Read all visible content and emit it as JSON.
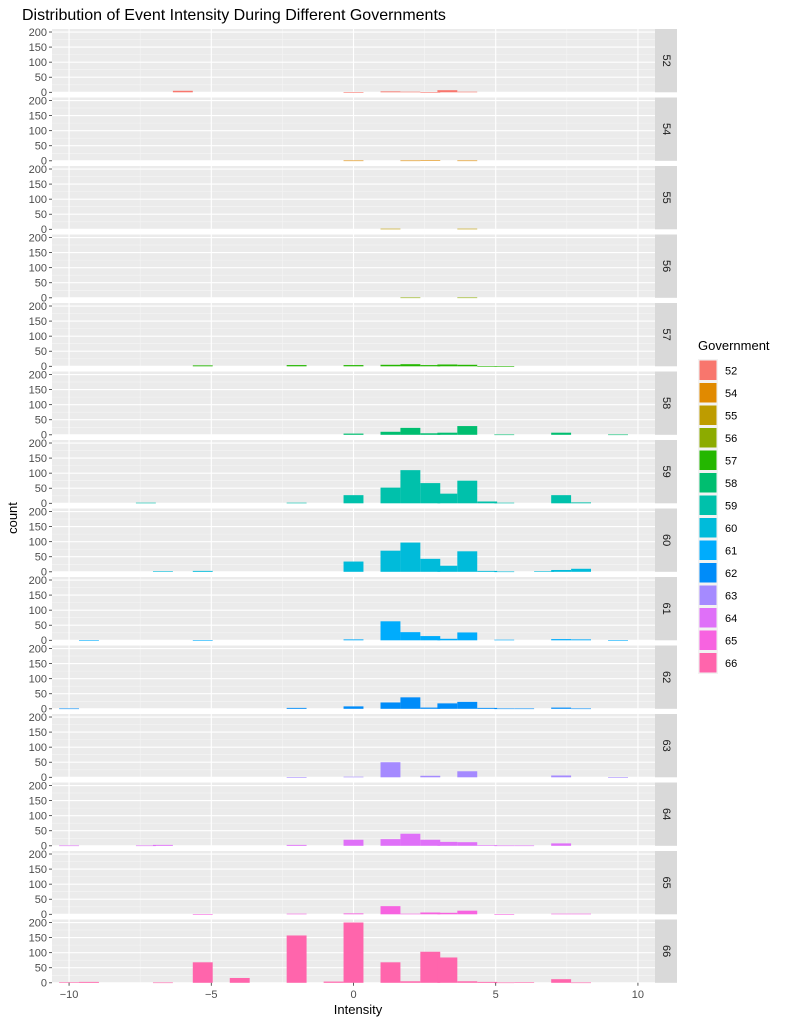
{
  "chart_data": {
    "type": "bar",
    "subtype": "faceted-histogram",
    "title": "Distribution of Event Intensity During Different Governments",
    "xlabel": "Intensity",
    "ylabel": "count",
    "xlim": [
      -10.6,
      10.6
    ],
    "ylim": [
      0,
      210
    ],
    "x_ticks": [
      -10,
      -5,
      0,
      5,
      10
    ],
    "x_tick_labels": [
      "−10",
      "−5",
      "0",
      "5",
      "10"
    ],
    "y_ticks": [
      0,
      50,
      100,
      150,
      200
    ],
    "y_tick_labels": [
      "0",
      "50",
      "100",
      "150",
      "200"
    ],
    "bin_width": 0.7,
    "grid": true,
    "legend": {
      "title": "Government",
      "position": "right",
      "entries": [
        "52",
        "54",
        "55",
        "56",
        "57",
        "58",
        "59",
        "60",
        "61",
        "62",
        "63",
        "64",
        "65",
        "66"
      ]
    },
    "colors": {
      "52": "#F8766D",
      "54": "#E18A00",
      "55": "#BE9C00",
      "56": "#8CAB00",
      "57": "#24B700",
      "58": "#00BE70",
      "59": "#00C1AB",
      "60": "#00BBDA",
      "61": "#00ACFC",
      "62": "#008CF9",
      "63": "#A58AFF",
      "64": "#DF70F8",
      "65": "#F763E0",
      "66": "#FF65AC"
    },
    "series": [
      {
        "name": "52",
        "points": [
          {
            "x": -6.0,
            "y": 5
          },
          {
            "x": 0.0,
            "y": 1
          },
          {
            "x": 1.3,
            "y": 3
          },
          {
            "x": 2.0,
            "y": 2
          },
          {
            "x": 2.7,
            "y": 1
          },
          {
            "x": 3.3,
            "y": 7
          },
          {
            "x": 4.0,
            "y": 2
          }
        ]
      },
      {
        "name": "54",
        "points": [
          {
            "x": 0.0,
            "y": 1
          },
          {
            "x": 2.0,
            "y": 1
          },
          {
            "x": 2.7,
            "y": 2
          },
          {
            "x": 4.0,
            "y": 1
          }
        ]
      },
      {
        "name": "55",
        "points": [
          {
            "x": 1.3,
            "y": 2
          },
          {
            "x": 4.0,
            "y": 2
          }
        ]
      },
      {
        "name": "56",
        "points": [
          {
            "x": 2.0,
            "y": 1
          },
          {
            "x": 4.0,
            "y": 1
          }
        ]
      },
      {
        "name": "57",
        "points": [
          {
            "x": -5.3,
            "y": 3
          },
          {
            "x": -2.0,
            "y": 4
          },
          {
            "x": 0.0,
            "y": 4
          },
          {
            "x": 1.3,
            "y": 5
          },
          {
            "x": 2.0,
            "y": 7
          },
          {
            "x": 2.7,
            "y": 4
          },
          {
            "x": 3.3,
            "y": 6
          },
          {
            "x": 4.0,
            "y": 5
          },
          {
            "x": 4.7,
            "y": 1
          },
          {
            "x": 5.3,
            "y": 1
          }
        ]
      },
      {
        "name": "58",
        "points": [
          {
            "x": 0.0,
            "y": 4
          },
          {
            "x": 1.3,
            "y": 10
          },
          {
            "x": 2.0,
            "y": 23
          },
          {
            "x": 2.7,
            "y": 5
          },
          {
            "x": 3.3,
            "y": 7
          },
          {
            "x": 4.0,
            "y": 29
          },
          {
            "x": 5.3,
            "y": 1
          },
          {
            "x": 7.3,
            "y": 7
          },
          {
            "x": 9.3,
            "y": 1
          }
        ]
      },
      {
        "name": "59",
        "points": [
          {
            "x": -7.3,
            "y": 2
          },
          {
            "x": -2.0,
            "y": 2
          },
          {
            "x": 0.0,
            "y": 27
          },
          {
            "x": 1.3,
            "y": 52
          },
          {
            "x": 2.0,
            "y": 110
          },
          {
            "x": 2.7,
            "y": 67
          },
          {
            "x": 3.3,
            "y": 32
          },
          {
            "x": 4.0,
            "y": 75
          },
          {
            "x": 4.7,
            "y": 6
          },
          {
            "x": 5.3,
            "y": 2
          },
          {
            "x": 7.3,
            "y": 27
          },
          {
            "x": 8.0,
            "y": 3
          }
        ]
      },
      {
        "name": "60",
        "points": [
          {
            "x": -6.7,
            "y": 2
          },
          {
            "x": -5.3,
            "y": 3
          },
          {
            "x": 0.0,
            "y": 34
          },
          {
            "x": 1.3,
            "y": 70
          },
          {
            "x": 2.0,
            "y": 97
          },
          {
            "x": 2.7,
            "y": 43
          },
          {
            "x": 3.3,
            "y": 20
          },
          {
            "x": 4.0,
            "y": 68
          },
          {
            "x": 4.7,
            "y": 3
          },
          {
            "x": 5.3,
            "y": 1
          },
          {
            "x": 6.7,
            "y": 2
          },
          {
            "x": 7.3,
            "y": 6
          },
          {
            "x": 8.0,
            "y": 10
          }
        ]
      },
      {
        "name": "61",
        "points": [
          {
            "x": -9.3,
            "y": 1
          },
          {
            "x": -5.3,
            "y": 1
          },
          {
            "x": 0.0,
            "y": 3
          },
          {
            "x": 1.3,
            "y": 63
          },
          {
            "x": 2.0,
            "y": 27
          },
          {
            "x": 2.7,
            "y": 14
          },
          {
            "x": 3.3,
            "y": 5
          },
          {
            "x": 4.0,
            "y": 26
          },
          {
            "x": 5.3,
            "y": 2
          },
          {
            "x": 7.3,
            "y": 4
          },
          {
            "x": 8.0,
            "y": 3
          },
          {
            "x": 9.3,
            "y": 1
          }
        ]
      },
      {
        "name": "62",
        "points": [
          {
            "x": -10.0,
            "y": 1
          },
          {
            "x": -2.0,
            "y": 3
          },
          {
            "x": 0.0,
            "y": 8
          },
          {
            "x": 1.3,
            "y": 21
          },
          {
            "x": 2.0,
            "y": 38
          },
          {
            "x": 2.7,
            "y": 4
          },
          {
            "x": 3.3,
            "y": 18
          },
          {
            "x": 4.0,
            "y": 23
          },
          {
            "x": 4.7,
            "y": 3
          },
          {
            "x": 5.3,
            "y": 1
          },
          {
            "x": 6.0,
            "y": 1
          },
          {
            "x": 7.3,
            "y": 4
          },
          {
            "x": 8.0,
            "y": 1
          }
        ]
      },
      {
        "name": "63",
        "points": [
          {
            "x": -2.0,
            "y": 1
          },
          {
            "x": 0.0,
            "y": 2
          },
          {
            "x": 1.3,
            "y": 50
          },
          {
            "x": 2.7,
            "y": 5
          },
          {
            "x": 4.0,
            "y": 20
          },
          {
            "x": 7.3,
            "y": 6
          },
          {
            "x": 9.3,
            "y": 1
          }
        ]
      },
      {
        "name": "64",
        "points": [
          {
            "x": -10.0,
            "y": 1
          },
          {
            "x": -7.3,
            "y": 1
          },
          {
            "x": -6.7,
            "y": 3
          },
          {
            "x": -2.0,
            "y": 3
          },
          {
            "x": 0.0,
            "y": 20
          },
          {
            "x": 1.3,
            "y": 22
          },
          {
            "x": 2.0,
            "y": 40
          },
          {
            "x": 2.7,
            "y": 20
          },
          {
            "x": 3.3,
            "y": 13
          },
          {
            "x": 4.0,
            "y": 12
          },
          {
            "x": 4.7,
            "y": 2
          },
          {
            "x": 5.3,
            "y": 1
          },
          {
            "x": 6.0,
            "y": 1
          },
          {
            "x": 7.3,
            "y": 8
          }
        ]
      },
      {
        "name": "65",
        "points": [
          {
            "x": -5.3,
            "y": 1
          },
          {
            "x": -2.0,
            "y": 2
          },
          {
            "x": 0.0,
            "y": 3
          },
          {
            "x": 1.3,
            "y": 27
          },
          {
            "x": 2.0,
            "y": 2
          },
          {
            "x": 2.7,
            "y": 6
          },
          {
            "x": 3.3,
            "y": 5
          },
          {
            "x": 4.0,
            "y": 12
          },
          {
            "x": 5.3,
            "y": 1
          },
          {
            "x": 7.3,
            "y": 2
          },
          {
            "x": 8.0,
            "y": 2
          }
        ]
      },
      {
        "name": "66",
        "points": [
          {
            "x": -10.0,
            "y": 2
          },
          {
            "x": -9.3,
            "y": 3
          },
          {
            "x": -6.7,
            "y": 1
          },
          {
            "x": -5.3,
            "y": 68
          },
          {
            "x": -4.0,
            "y": 16
          },
          {
            "x": -2.0,
            "y": 157
          },
          {
            "x": -0.7,
            "y": 4
          },
          {
            "x": 0.0,
            "y": 200
          },
          {
            "x": 1.3,
            "y": 68
          },
          {
            "x": 2.0,
            "y": 5
          },
          {
            "x": 2.7,
            "y": 103
          },
          {
            "x": 3.3,
            "y": 84
          },
          {
            "x": 4.0,
            "y": 5
          },
          {
            "x": 4.7,
            "y": 3
          },
          {
            "x": 5.3,
            "y": 1
          },
          {
            "x": 6.0,
            "y": 2
          },
          {
            "x": 7.3,
            "y": 12
          },
          {
            "x": 8.0,
            "y": 1
          }
        ]
      }
    ]
  }
}
